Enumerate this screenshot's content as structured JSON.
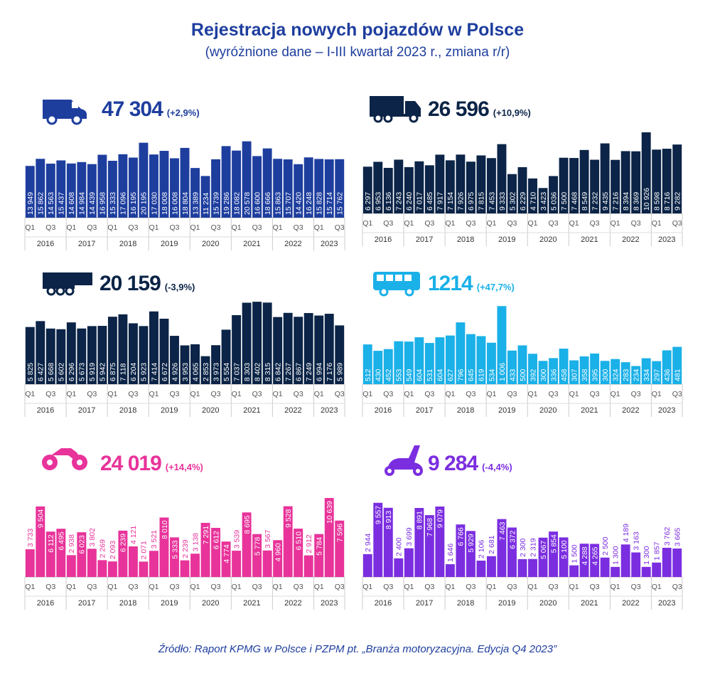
{
  "title": "Rejestracja nowych pojazdów w Polsce",
  "subtitle": "(wyróżnione dane – I-III kwartał 2023 r., zmiana r/r)",
  "source": "Źródło: Raport KPMG w Polsce i PZPM pt. „Branża motoryzacyjna. Edycja Q4 2023”",
  "chart_data": [
    {
      "type": "bar",
      "headline": "47 304",
      "change": "(+2,9%)",
      "color": "#1e3e9e",
      "categories": [
        "Q1",
        null,
        "Q3",
        null,
        "Q1",
        null,
        "Q3",
        null,
        "Q1",
        null,
        "Q3",
        null,
        "Q1",
        null,
        "Q3",
        null,
        "Q1",
        null,
        "Q3",
        null,
        "Q1",
        null,
        "Q3",
        null,
        "Q1",
        null,
        "Q3",
        null,
        "Q1",
        null,
        "Q3"
      ],
      "groups": [
        "2016",
        "2017",
        "2018",
        "2019",
        "2020",
        "2021",
        "2022",
        "2023"
      ],
      "values": [
        13949,
        15862,
        14563,
        15437,
        14608,
        14984,
        14439,
        16958,
        15333,
        17096,
        16195,
        20195,
        17030,
        18008,
        16008,
        18804,
        13389,
        11234,
        15739,
        19286,
        18082,
        20578,
        16600,
        18666,
        15863,
        15707,
        14420,
        16248,
        15828,
        15714,
        15762
      ],
      "value_labels": [
        "13 949",
        "15 862",
        "14 563",
        "15 437",
        "14 608",
        "14 984",
        "14 439",
        "16 958",
        "15 333",
        "17 096",
        "16 195",
        "20 195",
        "17 030",
        "18 008",
        "16 008",
        "18 804",
        "13 389",
        "11 234",
        "15 739",
        "19 286",
        "18 082",
        "20 578",
        "16 600",
        "18 666",
        "15 863",
        "15 707",
        "14 420",
        "16 248",
        "15 828",
        "15 714",
        "15 762"
      ],
      "ylim": [
        0,
        23000
      ]
    },
    {
      "type": "bar",
      "headline": "26 596",
      "change": "(+10,9%)",
      "color": "#0b2447",
      "categories": [
        "Q1",
        null,
        "Q3",
        null,
        "Q1",
        null,
        "Q3",
        null,
        "Q1",
        null,
        "Q3",
        null,
        "Q1",
        null,
        "Q3",
        null,
        "Q1",
        null,
        "Q3",
        null,
        "Q1",
        null,
        "Q3",
        null,
        "Q1",
        null,
        "Q3",
        null,
        "Q1",
        null,
        "Q3"
      ],
      "groups": [
        "2016",
        "2017",
        "2018",
        "2019",
        "2020",
        "2021",
        "2022",
        "2023"
      ],
      "values": [
        6297,
        6953,
        6136,
        7243,
        6240,
        7017,
        6485,
        7917,
        7154,
        7926,
        6975,
        7815,
        7453,
        9333,
        5302,
        6229,
        4710,
        3423,
        5036,
        7500,
        7468,
        8549,
        7232,
        9435,
        7216,
        8394,
        8369,
        10926,
        8598,
        8716,
        9282
      ],
      "value_labels": [
        "6 297",
        "6 953",
        "6 136",
        "7 243",
        "6 240",
        "7 017",
        "6 485",
        "7 917",
        "7 154",
        "7 926",
        "6 975",
        "7 815",
        "7 453",
        "9 333",
        "5 302",
        "6 229",
        "4 710",
        "3 423",
        "5 036",
        "7 500",
        "7 468",
        "8 549",
        "7 232",
        "9 435",
        "7 216",
        "8 394",
        "8 369",
        "10 926",
        "8 598",
        "8 716",
        "9 282"
      ],
      "ylim": [
        0,
        11500
      ]
    },
    {
      "type": "bar",
      "headline": "20 159",
      "change": "(-3,9%)",
      "color": "#0b2447",
      "categories": [
        "Q1",
        null,
        "Q3",
        null,
        "Q1",
        null,
        "Q3",
        null,
        "Q1",
        null,
        "Q3",
        null,
        "Q1",
        null,
        "Q3",
        null,
        "Q1",
        null,
        "Q3",
        null,
        "Q1",
        null,
        "Q3",
        null,
        "Q1",
        null,
        "Q3",
        null,
        "Q1",
        null,
        "Q3"
      ],
      "groups": [
        "2016",
        "2017",
        "2018",
        "2019",
        "2020",
        "2021",
        "2022",
        "2023"
      ],
      "values": [
        5825,
        6427,
        5668,
        5602,
        6296,
        5673,
        5919,
        5942,
        6875,
        7118,
        6204,
        5923,
        7414,
        6672,
        4926,
        3953,
        4065,
        2853,
        3973,
        5554,
        7037,
        8303,
        8402,
        8315,
        6842,
        7267,
        6867,
        7249,
        6994,
        7176,
        5989
      ],
      "value_labels": [
        "5 825",
        "6 427",
        "5 668",
        "5 602",
        "6 296",
        "5 673",
        "5 919",
        "5 942",
        "6 875",
        "7 118",
        "6 204",
        "5 923",
        "7 414",
        "6 672",
        "4 926",
        "3 953",
        "4 065",
        "2 853",
        "3 973",
        "5 554",
        "7 037",
        "8 303",
        "8 402",
        "8 315",
        "6 842",
        "7 267",
        "6 867",
        "7 249",
        "6 994",
        "7 176",
        "5 989"
      ],
      "ylim": [
        0,
        8700
      ]
    },
    {
      "type": "bar",
      "headline": "1214",
      "change": "(+47,7%)",
      "color": "#1ab0e8",
      "categories": [
        "Q1",
        null,
        "Q3",
        null,
        "Q1",
        null,
        "Q3",
        null,
        "Q1",
        null,
        "Q3",
        null,
        "Q1",
        null,
        "Q3",
        null,
        "Q1",
        null,
        "Q3",
        null,
        "Q1",
        null,
        "Q3",
        null,
        "Q1",
        null,
        "Q3",
        null,
        "Q1",
        null,
        "Q3"
      ],
      "groups": [
        "2016",
        "2017",
        "2018",
        "2019",
        "2020",
        "2021",
        "2022",
        "2023"
      ],
      "values": [
        512,
        430,
        452,
        553,
        549,
        604,
        531,
        604,
        627,
        796,
        645,
        619,
        534,
        1006,
        433,
        500,
        392,
        300,
        336,
        458,
        307,
        358,
        395,
        300,
        324,
        283,
        234,
        334,
        297,
        436,
        481
      ],
      "value_labels": [
        "512",
        "430",
        "452",
        "553",
        "549",
        "604",
        "531",
        "604",
        "627",
        "796",
        "645",
        "619",
        "534",
        "1 006",
        "433",
        "500",
        "392",
        "300",
        "336",
        "458",
        "307",
        "358",
        "395",
        "300",
        "324",
        "283",
        "234",
        "334",
        "297",
        "436",
        "481"
      ],
      "ylim": [
        0,
        1100
      ]
    },
    {
      "type": "bar",
      "headline": "24 019",
      "change": "(+14,4%)",
      "color": "#e8339a",
      "categories": [
        "Q1",
        null,
        "Q3",
        null,
        "Q1",
        null,
        "Q3",
        null,
        "Q1",
        null,
        "Q3",
        null,
        "Q1",
        null,
        "Q3",
        null,
        "Q1",
        null,
        "Q3",
        null,
        "Q1",
        null,
        "Q3",
        null,
        "Q1",
        null,
        "Q3",
        null,
        "Q1",
        null,
        "Q3"
      ],
      "groups": [
        "2016",
        "2017",
        "2018",
        "2019",
        "2020",
        "2021",
        "2022",
        "2023"
      ],
      "values": [
        3733,
        9504,
        6112,
        6495,
        2938,
        6023,
        3802,
        2269,
        2093,
        6239,
        4121,
        2071,
        3521,
        8010,
        5333,
        2239,
        3138,
        7291,
        6612,
        4774,
        3539,
        8695,
        5778,
        3567,
        4960,
        9528,
        6510,
        2912,
        5784,
        10639,
        7596
      ],
      "value_labels": [
        "3 733",
        "9 504",
        "6 112",
        "6 495",
        "2 938",
        "6 023",
        "3 802",
        "2 269",
        "2 093",
        "6 239",
        "4 121",
        "2 071",
        "3 521",
        "8 010",
        "5 333",
        "2 239",
        "3 138",
        "7 291",
        "6 612",
        "4 774",
        "3 539",
        "8 695",
        "5 778",
        "3 567",
        "4 960",
        "9 528",
        "6 510",
        "2 912",
        "5 784",
        "10 639",
        "7 596"
      ],
      "ylim": [
        0,
        11500
      ]
    },
    {
      "type": "bar",
      "headline": "9 284",
      "change": "(-4,4%)",
      "color": "#7b2ee0",
      "categories": [
        "Q1",
        null,
        "Q3",
        null,
        "Q1",
        null,
        "Q3",
        null,
        "Q1",
        null,
        "Q3",
        null,
        "Q1",
        null,
        "Q3",
        null,
        "Q1",
        null,
        "Q3",
        null,
        "Q1",
        null,
        "Q3",
        null,
        "Q1",
        null,
        "Q3",
        null,
        "Q1",
        null,
        "Q3"
      ],
      "groups": [
        "2016",
        "2017",
        "2018",
        "2019",
        "2020",
        "2021",
        "2022",
        "2023"
      ],
      "values": [
        2944,
        9557,
        8913,
        2400,
        3699,
        8891,
        7968,
        9079,
        1646,
        6766,
        5929,
        2106,
        2681,
        7463,
        6372,
        2300,
        2319,
        5067,
        5854,
        5100,
        1500,
        4288,
        4265,
        2500,
        1300,
        4189,
        3163,
        1300,
        1857,
        3762,
        3665
      ],
      "value_labels": [
        "2 944",
        "9 557",
        "8 913",
        "2 400",
        "3 699",
        "8 891",
        "7 968",
        "9 079",
        "1 646",
        "6 766",
        "5 929",
        "2 106",
        "2 681",
        "7 463",
        "6 372",
        "2 300",
        "2 319",
        "5 067",
        "5 854",
        "5 100",
        "1 500",
        "4 288",
        "4 265",
        "2 500",
        "1 300",
        "4 189",
        "3 163",
        "1 300",
        "1 857",
        "3 762",
        "3 665"
      ],
      "ylim": [
        0,
        11000
      ]
    }
  ]
}
